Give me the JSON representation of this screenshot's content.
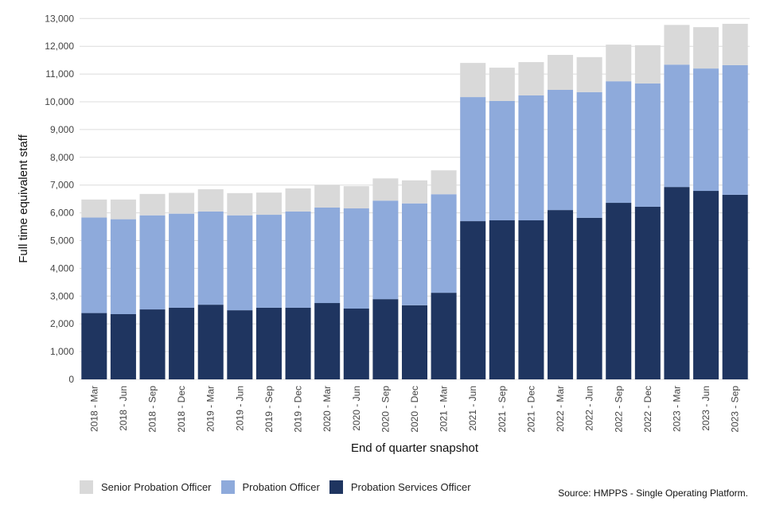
{
  "chart_data": {
    "type": "bar",
    "stacked": true,
    "title": "",
    "xlabel": "End of quarter snapshot",
    "ylabel": "Full time equivalent staff",
    "ylim": [
      0,
      13000
    ],
    "yticks": [
      0,
      1000,
      2000,
      3000,
      4000,
      5000,
      6000,
      7000,
      8000,
      9000,
      10000,
      11000,
      12000,
      13000
    ],
    "ytick_labels": [
      "0",
      "1,000",
      "2,000",
      "3,000",
      "4,000",
      "5,000",
      "6,000",
      "7,000",
      "8,000",
      "9,000",
      "10,000",
      "11,000",
      "12,000",
      "13,000"
    ],
    "grid": true,
    "legend_position": "bottom-left",
    "categories": [
      "2018 - Mar",
      "2018 - Jun",
      "2018 - Sep",
      "2018 - Dec",
      "2019 - Mar",
      "2019 - Jun",
      "2019 - Sep",
      "2019 - Dec",
      "2020 - Mar",
      "2020 - Jun",
      "2020 - Sep",
      "2020 - Dec",
      "2021 - Mar",
      "2021 - Jun",
      "2021 - Sep",
      "2021 - Dec",
      "2022 - Mar",
      "2022 - Jun",
      "2022 - Sep",
      "2022 - Dec",
      "2023 - Mar",
      "2023 - Jun",
      "2023 - Sep"
    ],
    "series": [
      {
        "name": "Probation Services Officer",
        "color": "#1f3560",
        "values": [
          2390,
          2350,
          2520,
          2580,
          2690,
          2490,
          2580,
          2580,
          2750,
          2550,
          2890,
          2670,
          3120,
          5700,
          5730,
          5730,
          6100,
          5820,
          6360,
          6220,
          6930,
          6790,
          6650
        ]
      },
      {
        "name": "Probation Officer",
        "color": "#8eaadb",
        "values": [
          3440,
          3420,
          3390,
          3390,
          3360,
          3420,
          3350,
          3470,
          3440,
          3610,
          3550,
          3670,
          3550,
          4470,
          4300,
          4500,
          4330,
          4530,
          4380,
          4440,
          4410,
          4410,
          4670
        ]
      },
      {
        "name": "Senior Probation Officer",
        "color": "#d9d9d9",
        "values": [
          650,
          710,
          770,
          750,
          800,
          800,
          800,
          830,
          820,
          800,
          800,
          830,
          860,
          1230,
          1200,
          1200,
          1260,
          1260,
          1320,
          1380,
          1430,
          1490,
          1490
        ]
      }
    ],
    "legend": [
      "Senior Probation Officer",
      "Probation Officer",
      "Probation Services Officer"
    ],
    "source": "Source: HMPPS - Single Operating Platform."
  }
}
